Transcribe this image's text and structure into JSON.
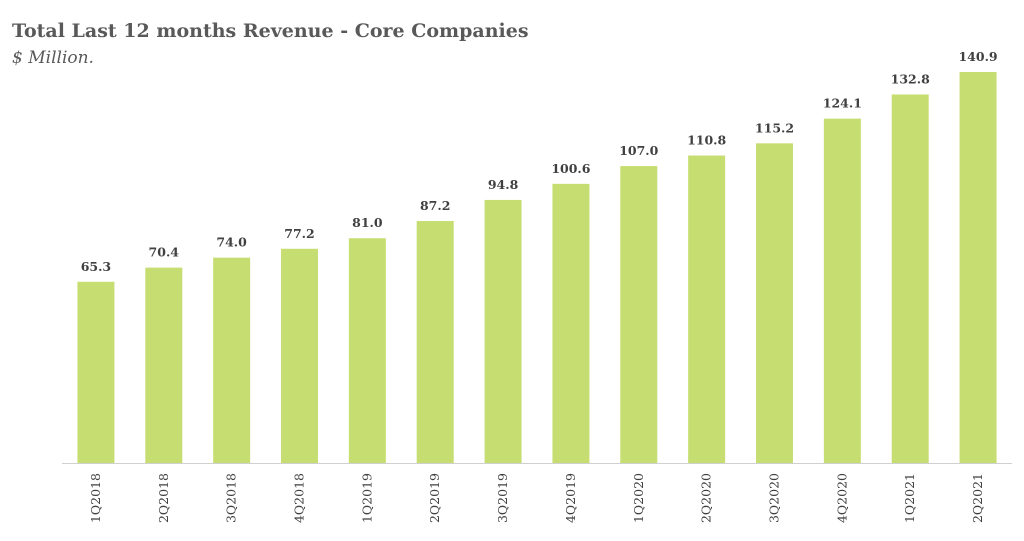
{
  "chart_data": {
    "type": "bar",
    "title": "Total Last 12 months Revenue - Core Companies",
    "subtitle": "$ Million.",
    "categories": [
      "1Q2018",
      "2Q2018",
      "3Q2018",
      "4Q2018",
      "1Q2019",
      "2Q2019",
      "3Q2019",
      "4Q2019",
      "1Q2020",
      "2Q2020",
      "3Q2020",
      "4Q2020",
      "1Q2021",
      "2Q2021"
    ],
    "values": [
      65.3,
      70.4,
      74.0,
      77.2,
      81.0,
      87.2,
      94.8,
      100.6,
      107.0,
      110.8,
      115.2,
      124.1,
      132.8,
      140.9
    ],
    "value_labels": [
      "65.3",
      "70.4",
      "74.0",
      "77.2",
      "81.0",
      "87.2",
      "94.8",
      "100.6",
      "107.0",
      "110.8",
      "115.2",
      "124.1",
      "132.8",
      "140.9"
    ],
    "bar_color": "#c6dd72",
    "axis_color": "#d0d0d0",
    "ylim": [
      0,
      140.9
    ],
    "xlabel": "",
    "ylabel": "",
    "grid": false,
    "legend": "none"
  }
}
